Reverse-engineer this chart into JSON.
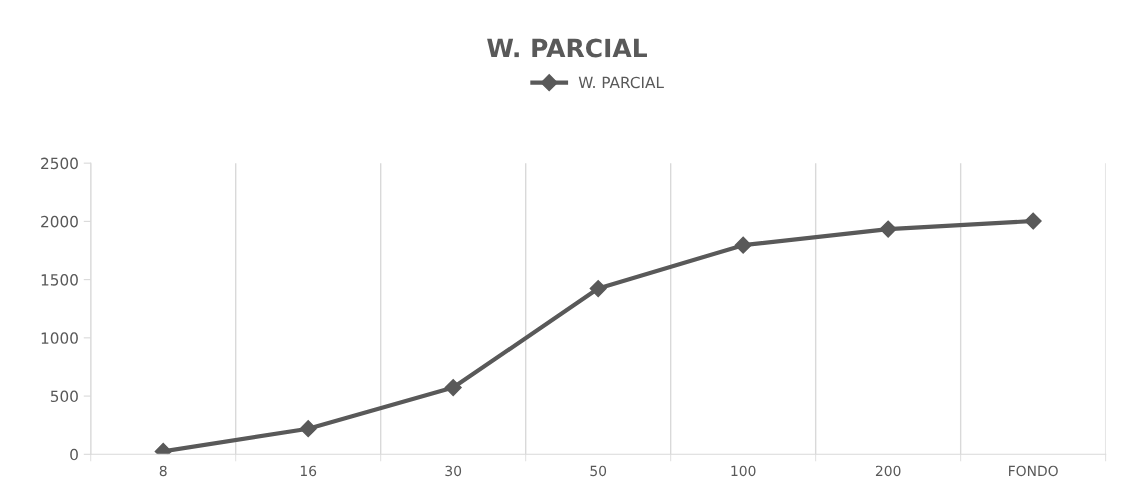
{
  "chart_data": {
    "type": "line",
    "title": "W. PARCIAL",
    "categories": [
      "8",
      "16",
      "30",
      "50",
      "100",
      "200",
      "FONDO"
    ],
    "series": [
      {
        "name": "W. PARCIAL",
        "color": "#595959",
        "values": [
          25,
          220,
          573,
          1423,
          1796,
          1934,
          2003
        ]
      }
    ],
    "ylim": [
      0,
      2500
    ],
    "yticks": [
      0,
      500,
      1000,
      1500,
      2000,
      2500
    ],
    "grid": "x",
    "legend": "top",
    "marker": "diamond",
    "line_style": "solid"
  }
}
